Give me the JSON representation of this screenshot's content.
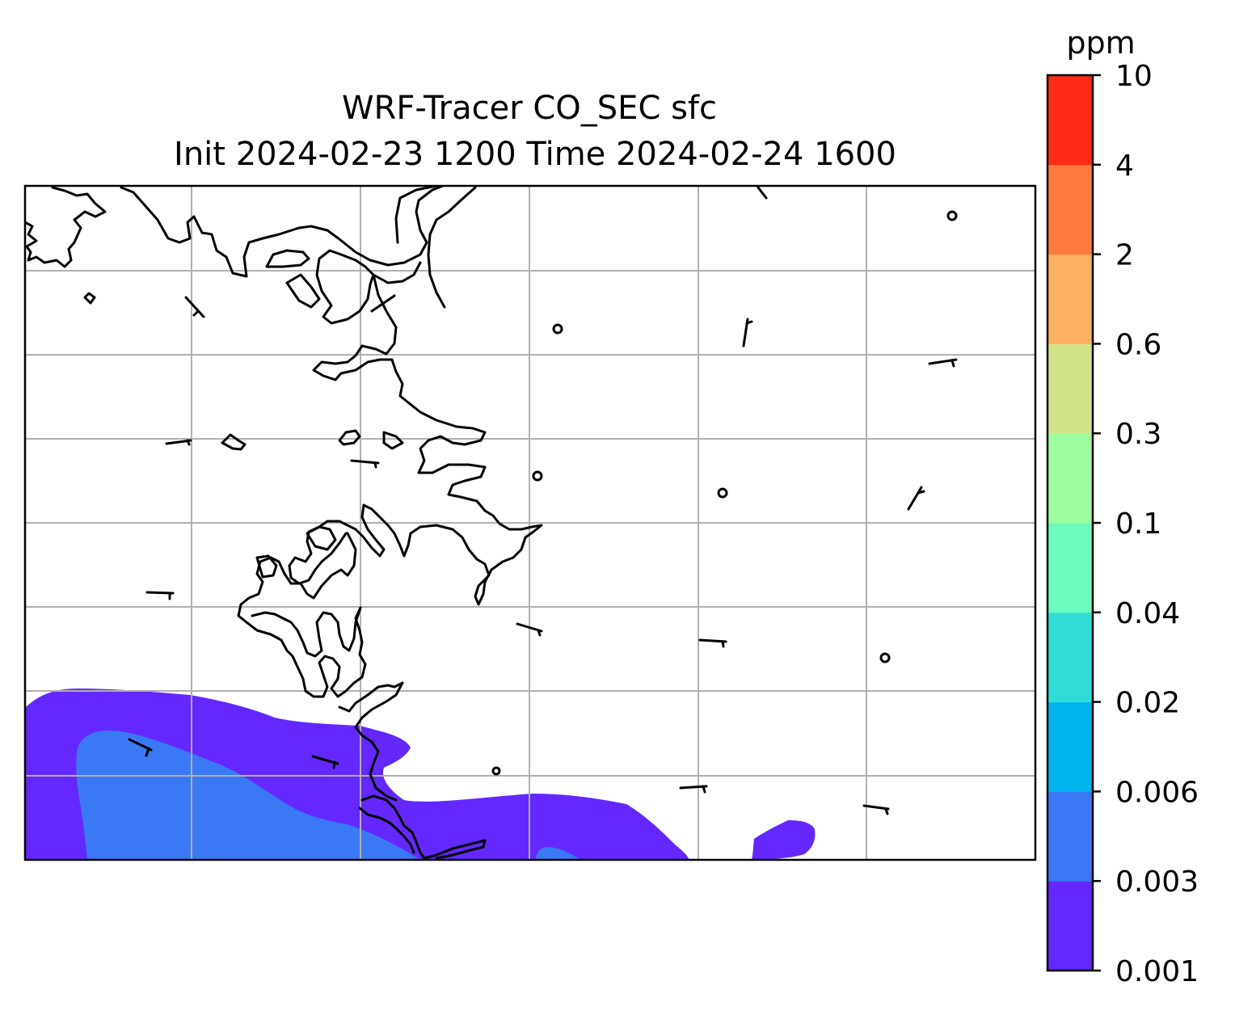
{
  "title": {
    "line1": "WRF-Tracer CO_SEC sfc",
    "line2": "Init 2024-02-23 1200 Time 2024-02-24 1600"
  },
  "colorbar": {
    "unit": "ppm",
    "levels": [
      "0.001",
      "0.003",
      "0.006",
      "0.02",
      "0.04",
      "0.1",
      "0.3",
      "0.6",
      "2",
      "4",
      "10"
    ],
    "colors": [
      "#6428ff",
      "#3a78f5",
      "#00b4ee",
      "#30dcd6",
      "#6cfbbe",
      "#9cfc9e",
      "#d2e48a",
      "#feb261",
      "#ff7a3d",
      "#ff2a18"
    ]
  },
  "map": {
    "coastline_color": "#000000",
    "gridline_color": "#b0b0b0",
    "plume_outer_level": "0.001",
    "plume_inner_level": "0.003"
  }
}
